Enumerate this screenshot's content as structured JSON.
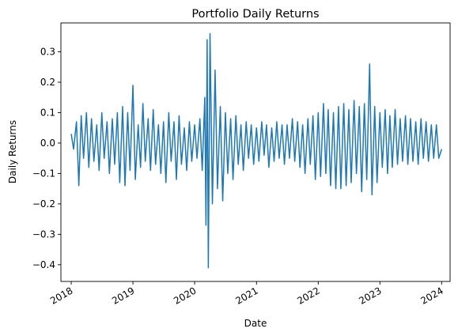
{
  "chart_data": {
    "type": "line",
    "title": "Portfolio Daily Returns",
    "xlabel": "Date",
    "ylabel": "Daily Returns",
    "grid": false,
    "legend": "none",
    "xlim": [
      "2017-11-01",
      "2024-02-20"
    ],
    "ylim": [
      -0.455,
      0.395
    ],
    "x_ticks": [
      {
        "date": "2018-01-01",
        "label": "2018"
      },
      {
        "date": "2019-01-01",
        "label": "2019"
      },
      {
        "date": "2020-01-01",
        "label": "2020"
      },
      {
        "date": "2021-01-01",
        "label": "2021"
      },
      {
        "date": "2022-01-01",
        "label": "2022"
      },
      {
        "date": "2023-01-01",
        "label": "2023"
      },
      {
        "date": "2024-01-01",
        "label": "2024"
      }
    ],
    "y_ticks": [
      {
        "value": 0.3,
        "label": "0.3"
      },
      {
        "value": 0.2,
        "label": "0.2"
      },
      {
        "value": 0.1,
        "label": "0.1"
      },
      {
        "value": 0.0,
        "label": "0.0"
      },
      {
        "value": -0.1,
        "label": "−0.1"
      },
      {
        "value": -0.2,
        "label": "−0.2"
      },
      {
        "value": -0.3,
        "label": "−0.3"
      },
      {
        "value": -0.4,
        "label": "−0.4"
      }
    ],
    "series": [
      {
        "color": "#1f77b4",
        "x": [
          "2018-01-01",
          "2018-01-15",
          "2018-02-01",
          "2018-02-15",
          "2018-03-01",
          "2018-03-15",
          "2018-04-01",
          "2018-04-15",
          "2018-05-01",
          "2018-05-15",
          "2018-06-01",
          "2018-06-15",
          "2018-07-01",
          "2018-07-15",
          "2018-08-01",
          "2018-08-15",
          "2018-09-01",
          "2018-09-15",
          "2018-10-01",
          "2018-10-15",
          "2018-11-01",
          "2018-11-15",
          "2018-12-01",
          "2018-12-15",
          "2019-01-01",
          "2019-01-15",
          "2019-02-01",
          "2019-02-15",
          "2019-03-01",
          "2019-03-15",
          "2019-04-01",
          "2019-04-15",
          "2019-05-01",
          "2019-05-15",
          "2019-06-01",
          "2019-06-15",
          "2019-07-01",
          "2019-07-15",
          "2019-08-01",
          "2019-08-15",
          "2019-09-01",
          "2019-09-15",
          "2019-10-01",
          "2019-10-15",
          "2019-11-01",
          "2019-11-15",
          "2019-12-01",
          "2019-12-15",
          "2020-01-01",
          "2020-01-15",
          "2020-02-01",
          "2020-02-15",
          "2020-03-01",
          "2020-03-08",
          "2020-03-15",
          "2020-03-22",
          "2020-04-01",
          "2020-04-15",
          "2020-05-01",
          "2020-05-15",
          "2020-06-01",
          "2020-06-15",
          "2020-07-01",
          "2020-07-15",
          "2020-08-01",
          "2020-08-15",
          "2020-09-01",
          "2020-09-15",
          "2020-10-01",
          "2020-10-15",
          "2020-11-01",
          "2020-11-15",
          "2020-12-01",
          "2020-12-15",
          "2021-01-01",
          "2021-01-15",
          "2021-02-01",
          "2021-02-15",
          "2021-03-01",
          "2021-03-15",
          "2021-04-01",
          "2021-04-15",
          "2021-05-01",
          "2021-05-15",
          "2021-06-01",
          "2021-06-15",
          "2021-07-01",
          "2021-07-15",
          "2021-08-01",
          "2021-08-15",
          "2021-09-01",
          "2021-09-15",
          "2021-10-01",
          "2021-10-15",
          "2021-11-01",
          "2021-11-15",
          "2021-12-01",
          "2021-12-15",
          "2022-01-01",
          "2022-01-15",
          "2022-02-01",
          "2022-02-15",
          "2022-03-01",
          "2022-03-15",
          "2022-04-01",
          "2022-04-15",
          "2022-05-01",
          "2022-05-15",
          "2022-06-01",
          "2022-06-15",
          "2022-07-01",
          "2022-07-15",
          "2022-08-01",
          "2022-08-15",
          "2022-09-01",
          "2022-09-15",
          "2022-10-01",
          "2022-10-15",
          "2022-11-01",
          "2022-11-15",
          "2022-12-01",
          "2022-12-15",
          "2023-01-01",
          "2023-01-15",
          "2023-02-01",
          "2023-02-15",
          "2023-03-01",
          "2023-03-15",
          "2023-04-01",
          "2023-04-15",
          "2023-05-01",
          "2023-05-15",
          "2023-06-01",
          "2023-06-15",
          "2023-07-01",
          "2023-07-15",
          "2023-08-01",
          "2023-08-15",
          "2023-09-01",
          "2023-09-15",
          "2023-10-01",
          "2023-10-15",
          "2023-11-01",
          "2023-11-15",
          "2023-12-01",
          "2023-12-15",
          "2024-01-01"
        ],
        "y": [
          0.03,
          -0.02,
          0.07,
          -0.14,
          0.09,
          -0.05,
          0.1,
          -0.08,
          0.08,
          -0.06,
          0.06,
          -0.09,
          0.1,
          -0.05,
          0.07,
          -0.1,
          0.08,
          -0.07,
          0.1,
          -0.13,
          0.12,
          -0.14,
          0.1,
          -0.09,
          0.19,
          -0.12,
          0.06,
          -0.08,
          0.13,
          -0.06,
          0.08,
          -0.09,
          0.11,
          -0.07,
          0.06,
          -0.1,
          0.07,
          -0.13,
          0.1,
          -0.06,
          0.07,
          -0.12,
          0.09,
          -0.07,
          0.05,
          -0.09,
          0.07,
          -0.06,
          0.06,
          -0.05,
          0.08,
          -0.09,
          0.15,
          -0.27,
          0.34,
          -0.41,
          0.36,
          -0.2,
          0.24,
          -0.15,
          0.12,
          -0.19,
          0.1,
          -0.1,
          0.08,
          -0.12,
          0.09,
          -0.07,
          0.06,
          -0.09,
          0.07,
          -0.05,
          0.06,
          -0.07,
          0.05,
          -0.06,
          0.07,
          -0.04,
          0.06,
          -0.08,
          0.05,
          -0.06,
          0.07,
          -0.05,
          0.06,
          -0.07,
          0.06,
          -0.05,
          0.08,
          -0.06,
          0.07,
          -0.08,
          0.06,
          -0.1,
          0.08,
          -0.07,
          0.09,
          -0.12,
          0.1,
          -0.11,
          0.13,
          -0.1,
          0.11,
          -0.14,
          0.1,
          -0.15,
          0.12,
          -0.15,
          0.13,
          -0.14,
          0.11,
          -0.13,
          0.14,
          -0.1,
          0.12,
          -0.16,
          0.13,
          -0.12,
          0.26,
          -0.17,
          0.12,
          -0.13,
          0.1,
          -0.08,
          0.11,
          -0.1,
          0.09,
          -0.08,
          0.11,
          -0.07,
          0.08,
          -0.06,
          0.09,
          -0.07,
          0.08,
          -0.06,
          0.07,
          -0.07,
          0.08,
          -0.05,
          0.07,
          -0.06,
          0.06,
          -0.05,
          0.06,
          -0.05,
          -0.02
        ]
      }
    ]
  }
}
